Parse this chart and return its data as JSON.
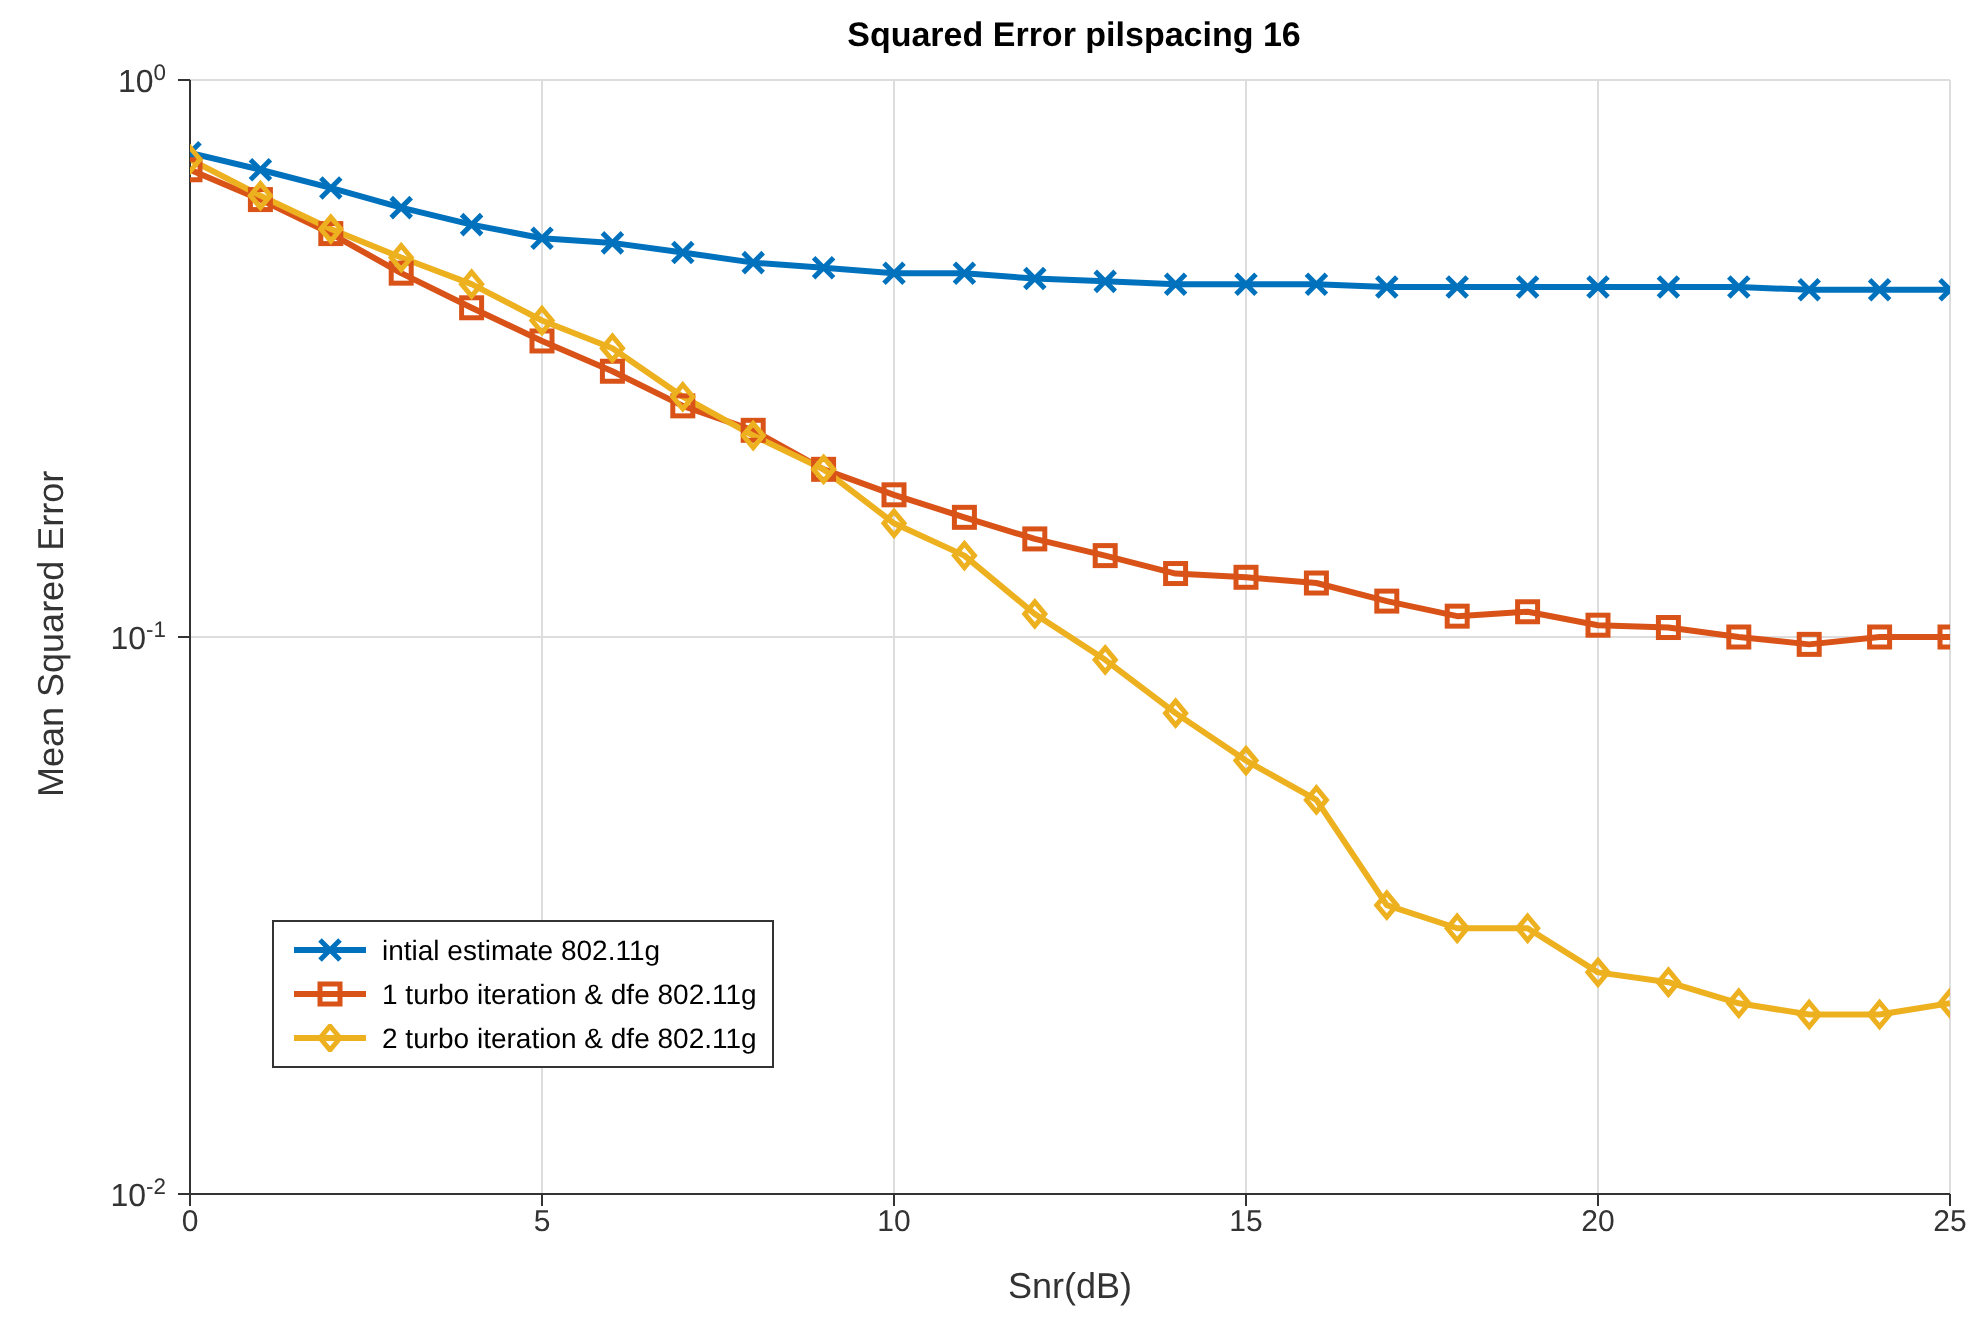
{
  "chart_data": {
    "type": "line",
    "title": "Squared Error pilspacing 16",
    "xlabel": "Snr(dB)",
    "ylabel": "Mean Squared Error",
    "x": [
      0,
      1,
      2,
      3,
      4,
      5,
      6,
      7,
      8,
      9,
      10,
      11,
      12,
      13,
      14,
      15,
      16,
      17,
      18,
      19,
      20,
      21,
      22,
      23,
      24,
      25
    ],
    "series": [
      {
        "name": "intial estimate 802.11g",
        "color": "#0072bd",
        "marker": "cross",
        "values": [
          0.74,
          0.69,
          0.64,
          0.59,
          0.55,
          0.52,
          0.51,
          0.49,
          0.47,
          0.46,
          0.45,
          0.45,
          0.44,
          0.435,
          0.43,
          0.43,
          0.43,
          0.425,
          0.425,
          0.425,
          0.425,
          0.425,
          0.425,
          0.42,
          0.42,
          0.42
        ]
      },
      {
        "name": "1 turbo iteration & dfe 802.11g",
        "color": "#d95319",
        "marker": "square",
        "values": [
          0.69,
          0.61,
          0.53,
          0.45,
          0.39,
          0.34,
          0.3,
          0.26,
          0.235,
          0.2,
          0.18,
          0.164,
          0.15,
          0.14,
          0.13,
          0.128,
          0.125,
          0.116,
          0.109,
          0.111,
          0.105,
          0.104,
          0.1,
          0.097,
          0.1,
          0.1
        ]
      },
      {
        "name": "2 turbo iteration & dfe 802.11g",
        "color": "#edb120",
        "marker": "diamond",
        "values": [
          0.72,
          0.62,
          0.54,
          0.48,
          0.43,
          0.37,
          0.33,
          0.27,
          0.23,
          0.2,
          0.16,
          0.14,
          0.11,
          0.091,
          0.073,
          0.06,
          0.051,
          0.033,
          0.03,
          0.03,
          0.025,
          0.024,
          0.022,
          0.021,
          0.021,
          0.022
        ]
      }
    ],
    "xlim": [
      0,
      25
    ],
    "xticks": [
      0,
      5,
      10,
      15,
      20,
      25
    ],
    "ylim": [
      0.01,
      1
    ],
    "yticks": [
      {
        "value": 0.01,
        "label": "10$^{-2}$"
      },
      {
        "value": 0.1,
        "label": "10$^{-1}$"
      },
      {
        "value": 1,
        "label": "10$^{0}$"
      }
    ],
    "log": "y",
    "grid": true,
    "legend": "bottom left",
    "line_style": "solid"
  }
}
